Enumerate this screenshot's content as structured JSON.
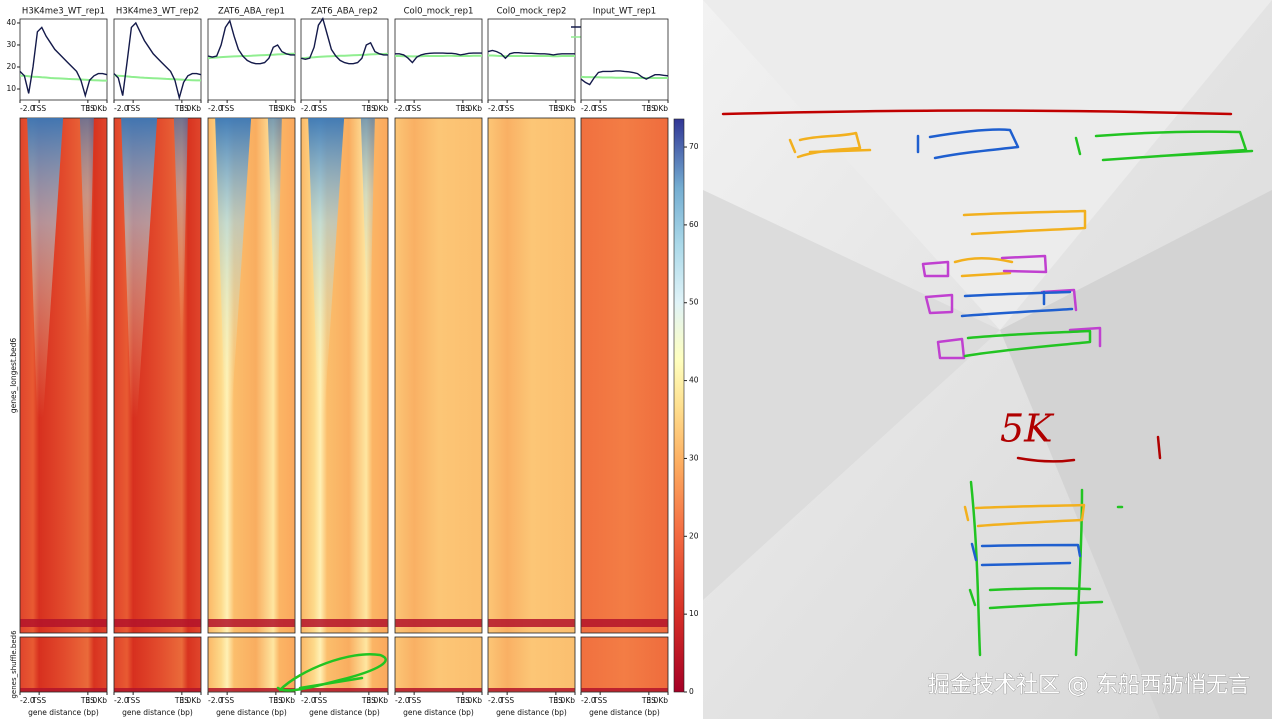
{
  "chart_data": [
    {
      "type": "line",
      "title": "H3K4me3_WT_rep1",
      "x": [
        0,
        5,
        10,
        15,
        20,
        25,
        30,
        35,
        40,
        45,
        50,
        55,
        60,
        65,
        70,
        75,
        80,
        85,
        90,
        95,
        100
      ],
      "series": [
        {
          "name": "genes_longest.bed6",
          "color": "#141a4a",
          "values": [
            18,
            16,
            8,
            20,
            36,
            38,
            34,
            31,
            28,
            26,
            24,
            22,
            20,
            18,
            14,
            7,
            14,
            16,
            17,
            17,
            16.5
          ]
        },
        {
          "name": "genes_shuffle.bed6",
          "color": "#90ee90",
          "values": [
            16,
            16,
            15.8,
            15.6,
            15.5,
            15.3,
            15.2,
            15,
            14.9,
            14.8,
            14.7,
            14.6,
            14.5,
            14.4,
            14.3,
            14.2,
            14.1,
            14,
            13.9,
            13.8,
            13.8
          ]
        }
      ],
      "ylim": [
        5,
        41.8
      ],
      "yticks": [
        10,
        20,
        30,
        40
      ],
      "xlim": [
        0,
        100
      ],
      "xticks": [
        {
          "value": 0,
          "label": "-2.0"
        },
        {
          "value": 22,
          "label": "TSS"
        },
        {
          "value": 78,
          "label": "TES"
        },
        {
          "value": 100,
          "label": "3.0Kb"
        }
      ],
      "xlabel": "gene distance (bp)"
    },
    {
      "type": "line",
      "title": "H3K4me3_WT_rep2",
      "x": [
        0,
        5,
        10,
        15,
        20,
        25,
        30,
        35,
        40,
        45,
        50,
        55,
        60,
        65,
        70,
        75,
        80,
        85,
        90,
        95,
        100
      ],
      "series": [
        {
          "name": "genes_longest.bed6",
          "color": "#141a4a",
          "values": [
            17,
            15,
            7,
            22,
            38,
            40,
            36,
            32,
            29,
            26,
            24,
            22,
            20,
            18,
            14,
            6,
            13,
            16,
            17,
            17,
            16.5
          ]
        },
        {
          "name": "genes_shuffle.bed6",
          "color": "#90ee90",
          "values": [
            16.2,
            16,
            15.9,
            15.7,
            15.5,
            15.4,
            15.2,
            15.1,
            15,
            14.9,
            14.8,
            14.7,
            14.6,
            14.5,
            14.4,
            14.3,
            14.2,
            14.1,
            14,
            13.9,
            13.9
          ]
        }
      ],
      "ylim": [
        5,
        41.8
      ],
      "xlim": [
        0,
        100
      ],
      "xticks": [
        {
          "value": 0,
          "label": "-2.0"
        },
        {
          "value": 22,
          "label": "TSS"
        },
        {
          "value": 78,
          "label": "TES"
        },
        {
          "value": 100,
          "label": "3.0Kb"
        }
      ],
      "xlabel": "gene distance (bp)"
    },
    {
      "type": "line",
      "title": "ZAT6_ABA_rep1",
      "x": [
        0,
        5,
        10,
        15,
        20,
        25,
        30,
        35,
        40,
        45,
        50,
        55,
        60,
        65,
        70,
        75,
        80,
        85,
        90,
        95,
        100
      ],
      "series": [
        {
          "name": "genes_longest.bed6",
          "color": "#141a4a",
          "values": [
            25,
            24.5,
            25,
            30,
            38,
            41,
            34,
            28,
            25,
            23,
            22,
            21.5,
            21.5,
            22,
            24,
            29,
            30,
            27,
            26,
            25.5,
            25.5
          ]
        },
        {
          "name": "genes_shuffle.bed6",
          "color": "#90ee90",
          "values": [
            24,
            24.2,
            24.3,
            24.5,
            24.6,
            24.7,
            24.8,
            24.9,
            25,
            25,
            25.1,
            25.2,
            25.3,
            25.4,
            25.5,
            25.6,
            25.7,
            25.8,
            25.9,
            26,
            26
          ]
        }
      ],
      "ylim": [
        5,
        41.8
      ],
      "xlim": [
        0,
        100
      ],
      "xticks": [
        {
          "value": 0,
          "label": "-2.0"
        },
        {
          "value": 22,
          "label": "TSS"
        },
        {
          "value": 78,
          "label": "TES"
        },
        {
          "value": 100,
          "label": "3.0Kb"
        }
      ],
      "xlabel": "gene distance (bp)"
    },
    {
      "type": "line",
      "title": "ZAT6_ABA_rep2",
      "x": [
        0,
        5,
        10,
        15,
        20,
        25,
        30,
        35,
        40,
        45,
        50,
        55,
        60,
        65,
        70,
        75,
        80,
        85,
        90,
        95,
        100
      ],
      "series": [
        {
          "name": "genes_longest.bed6",
          "color": "#141a4a",
          "values": [
            24,
            23.5,
            24,
            29,
            39,
            42,
            35,
            28,
            25,
            23,
            22,
            21.5,
            21.5,
            22,
            24,
            30,
            31,
            27,
            26,
            25.5,
            25.5
          ]
        },
        {
          "name": "genes_shuffle.bed6",
          "color": "#90ee90",
          "values": [
            24,
            24.1,
            24.3,
            24.4,
            24.6,
            24.7,
            24.8,
            24.9,
            25,
            25.1,
            25.1,
            25.2,
            25.3,
            25.4,
            25.5,
            25.6,
            25.7,
            25.8,
            25.9,
            25.9,
            26
          ]
        }
      ],
      "ylim": [
        5,
        41.8
      ],
      "xlim": [
        0,
        100
      ],
      "xticks": [
        {
          "value": 0,
          "label": "-2.0"
        },
        {
          "value": 22,
          "label": "TSS"
        },
        {
          "value": 78,
          "label": "TES"
        },
        {
          "value": 100,
          "label": "3.0Kb"
        }
      ],
      "xlabel": "gene distance (bp)"
    },
    {
      "type": "line",
      "title": "Col0_mock_rep1",
      "x": [
        0,
        5,
        10,
        15,
        20,
        25,
        30,
        35,
        40,
        45,
        50,
        55,
        60,
        65,
        70,
        75,
        80,
        85,
        90,
        95,
        100
      ],
      "series": [
        {
          "name": "genes_longest.bed6",
          "color": "#141a4a",
          "values": [
            26,
            26,
            25.5,
            24,
            22,
            24.5,
            25.5,
            26,
            26.2,
            26.3,
            26.3,
            26.3,
            26.2,
            26.2,
            26,
            25.5,
            25.8,
            26.2,
            26.3,
            26.3,
            26.3
          ]
        },
        {
          "name": "genes_shuffle.bed6",
          "color": "#90ee90",
          "values": [
            25,
            25,
            24.9,
            24.9,
            24.8,
            24.8,
            24.9,
            25,
            25,
            25,
            25,
            25,
            25.1,
            25.1,
            25,
            25,
            25,
            25,
            25.1,
            25.1,
            25.1
          ]
        }
      ],
      "ylim": [
        5,
        41.8
      ],
      "xlim": [
        0,
        100
      ],
      "xticks": [
        {
          "value": 0,
          "label": "-2.0"
        },
        {
          "value": 22,
          "label": "TSS"
        },
        {
          "value": 78,
          "label": "TES"
        },
        {
          "value": 100,
          "label": "3.0Kb"
        }
      ],
      "xlabel": "gene distance (bp)"
    },
    {
      "type": "line",
      "title": "Col0_mock_rep2",
      "x": [
        0,
        5,
        10,
        15,
        20,
        25,
        30,
        35,
        40,
        45,
        50,
        55,
        60,
        65,
        70,
        75,
        80,
        85,
        90,
        95,
        100
      ],
      "series": [
        {
          "name": "genes_longest.bed6",
          "color": "#141a4a",
          "values": [
            27,
            27.5,
            27,
            26,
            24,
            26,
            26.5,
            26.5,
            26.3,
            26.2,
            26.2,
            26.1,
            26,
            26,
            25.8,
            25.5,
            25.8,
            26,
            26,
            26,
            26
          ]
        },
        {
          "name": "genes_shuffle.bed6",
          "color": "#90ee90",
          "values": [
            25.2,
            25.2,
            25.1,
            25,
            24.9,
            25,
            25,
            25,
            25,
            25,
            25,
            25,
            25,
            25,
            25,
            24.9,
            24.9,
            25,
            25,
            25,
            25
          ]
        }
      ],
      "ylim": [
        5,
        41.8
      ],
      "legend": "upper right",
      "xlim": [
        0,
        100
      ],
      "xticks": [
        {
          "value": 0,
          "label": "-2.0"
        },
        {
          "value": 22,
          "label": "TSS"
        },
        {
          "value": 78,
          "label": "TES"
        },
        {
          "value": 100,
          "label": "3.0Kb"
        }
      ],
      "xlabel": "gene distance (bp)"
    },
    {
      "type": "line",
      "title": "Input_WT_rep1",
      "x": [
        0,
        5,
        10,
        15,
        20,
        25,
        30,
        35,
        40,
        45,
        50,
        55,
        60,
        65,
        70,
        75,
        80,
        85,
        90,
        95,
        100
      ],
      "series": [
        {
          "name": "genes_longest.bed6",
          "color": "#141a4a",
          "values": [
            14.5,
            13,
            12,
            15,
            17.5,
            18,
            18,
            18,
            18.2,
            18.2,
            18,
            17.8,
            17.5,
            17,
            15.5,
            14.5,
            15.5,
            16.5,
            16.5,
            16.2,
            16
          ]
        },
        {
          "name": "genes_shuffle.bed6",
          "color": "#90ee90",
          "values": [
            15.5,
            15.4,
            15.4,
            15.3,
            15.3,
            15.2,
            15.2,
            15.2,
            15.1,
            15.1,
            15.1,
            15.1,
            15,
            15,
            15,
            15,
            15,
            15,
            15,
            15,
            15
          ]
        }
      ],
      "ylim": [
        5,
        41.8
      ],
      "xlim": [
        0,
        100
      ],
      "xticks": [
        {
          "value": 0,
          "label": "-2.0"
        },
        {
          "value": 22,
          "label": "TSS"
        },
        {
          "value": 78,
          "label": "TES"
        },
        {
          "value": 100,
          "label": "3.0Kb"
        }
      ],
      "xlabel": "gene distance (bp)"
    }
  ],
  "heatmap": {
    "row_labels": [
      "genes_longest.bed6",
      "genes_shuffle.bed6"
    ],
    "colorbar_lim": [
      0,
      73.6
    ],
    "colorbar_ticks": [
      0,
      10,
      20,
      30,
      40,
      50,
      60,
      70
    ]
  },
  "annotation": "5K",
  "watermark": "掘金技术社区 @ 东船西舫悄无言"
}
